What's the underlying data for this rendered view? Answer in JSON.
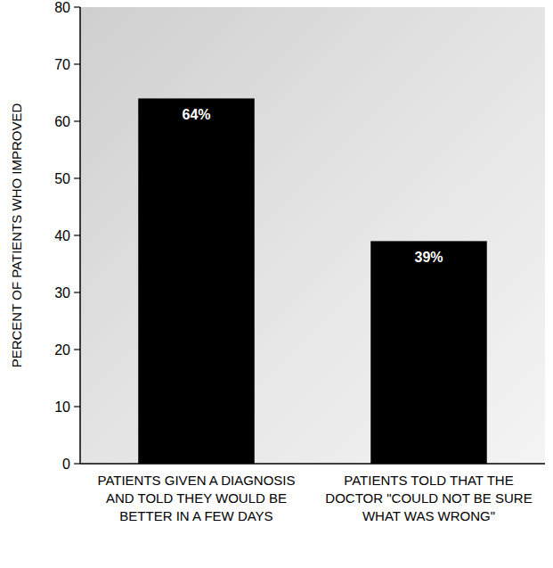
{
  "chart_data": {
    "type": "bar",
    "y_label": "PERCENT OF PATIENTS WHO IMPROVED",
    "categories": [
      "PATIENTS GIVEN A DIAGNOSIS AND TOLD THEY WOULD BE BETTER IN A FEW DAYS",
      "PATIENTS TOLD THAT THE DOCTOR \"COULD NOT BE SURE WHAT WAS WRONG\""
    ],
    "values": [
      64,
      39
    ],
    "value_labels": [
      "64%",
      "39%"
    ],
    "color": "#000000",
    "data_labels": true,
    "grid": false,
    "ylim": [
      0,
      80
    ],
    "yticks": [
      0,
      10,
      20,
      30,
      40,
      50,
      60,
      70,
      80
    ]
  }
}
